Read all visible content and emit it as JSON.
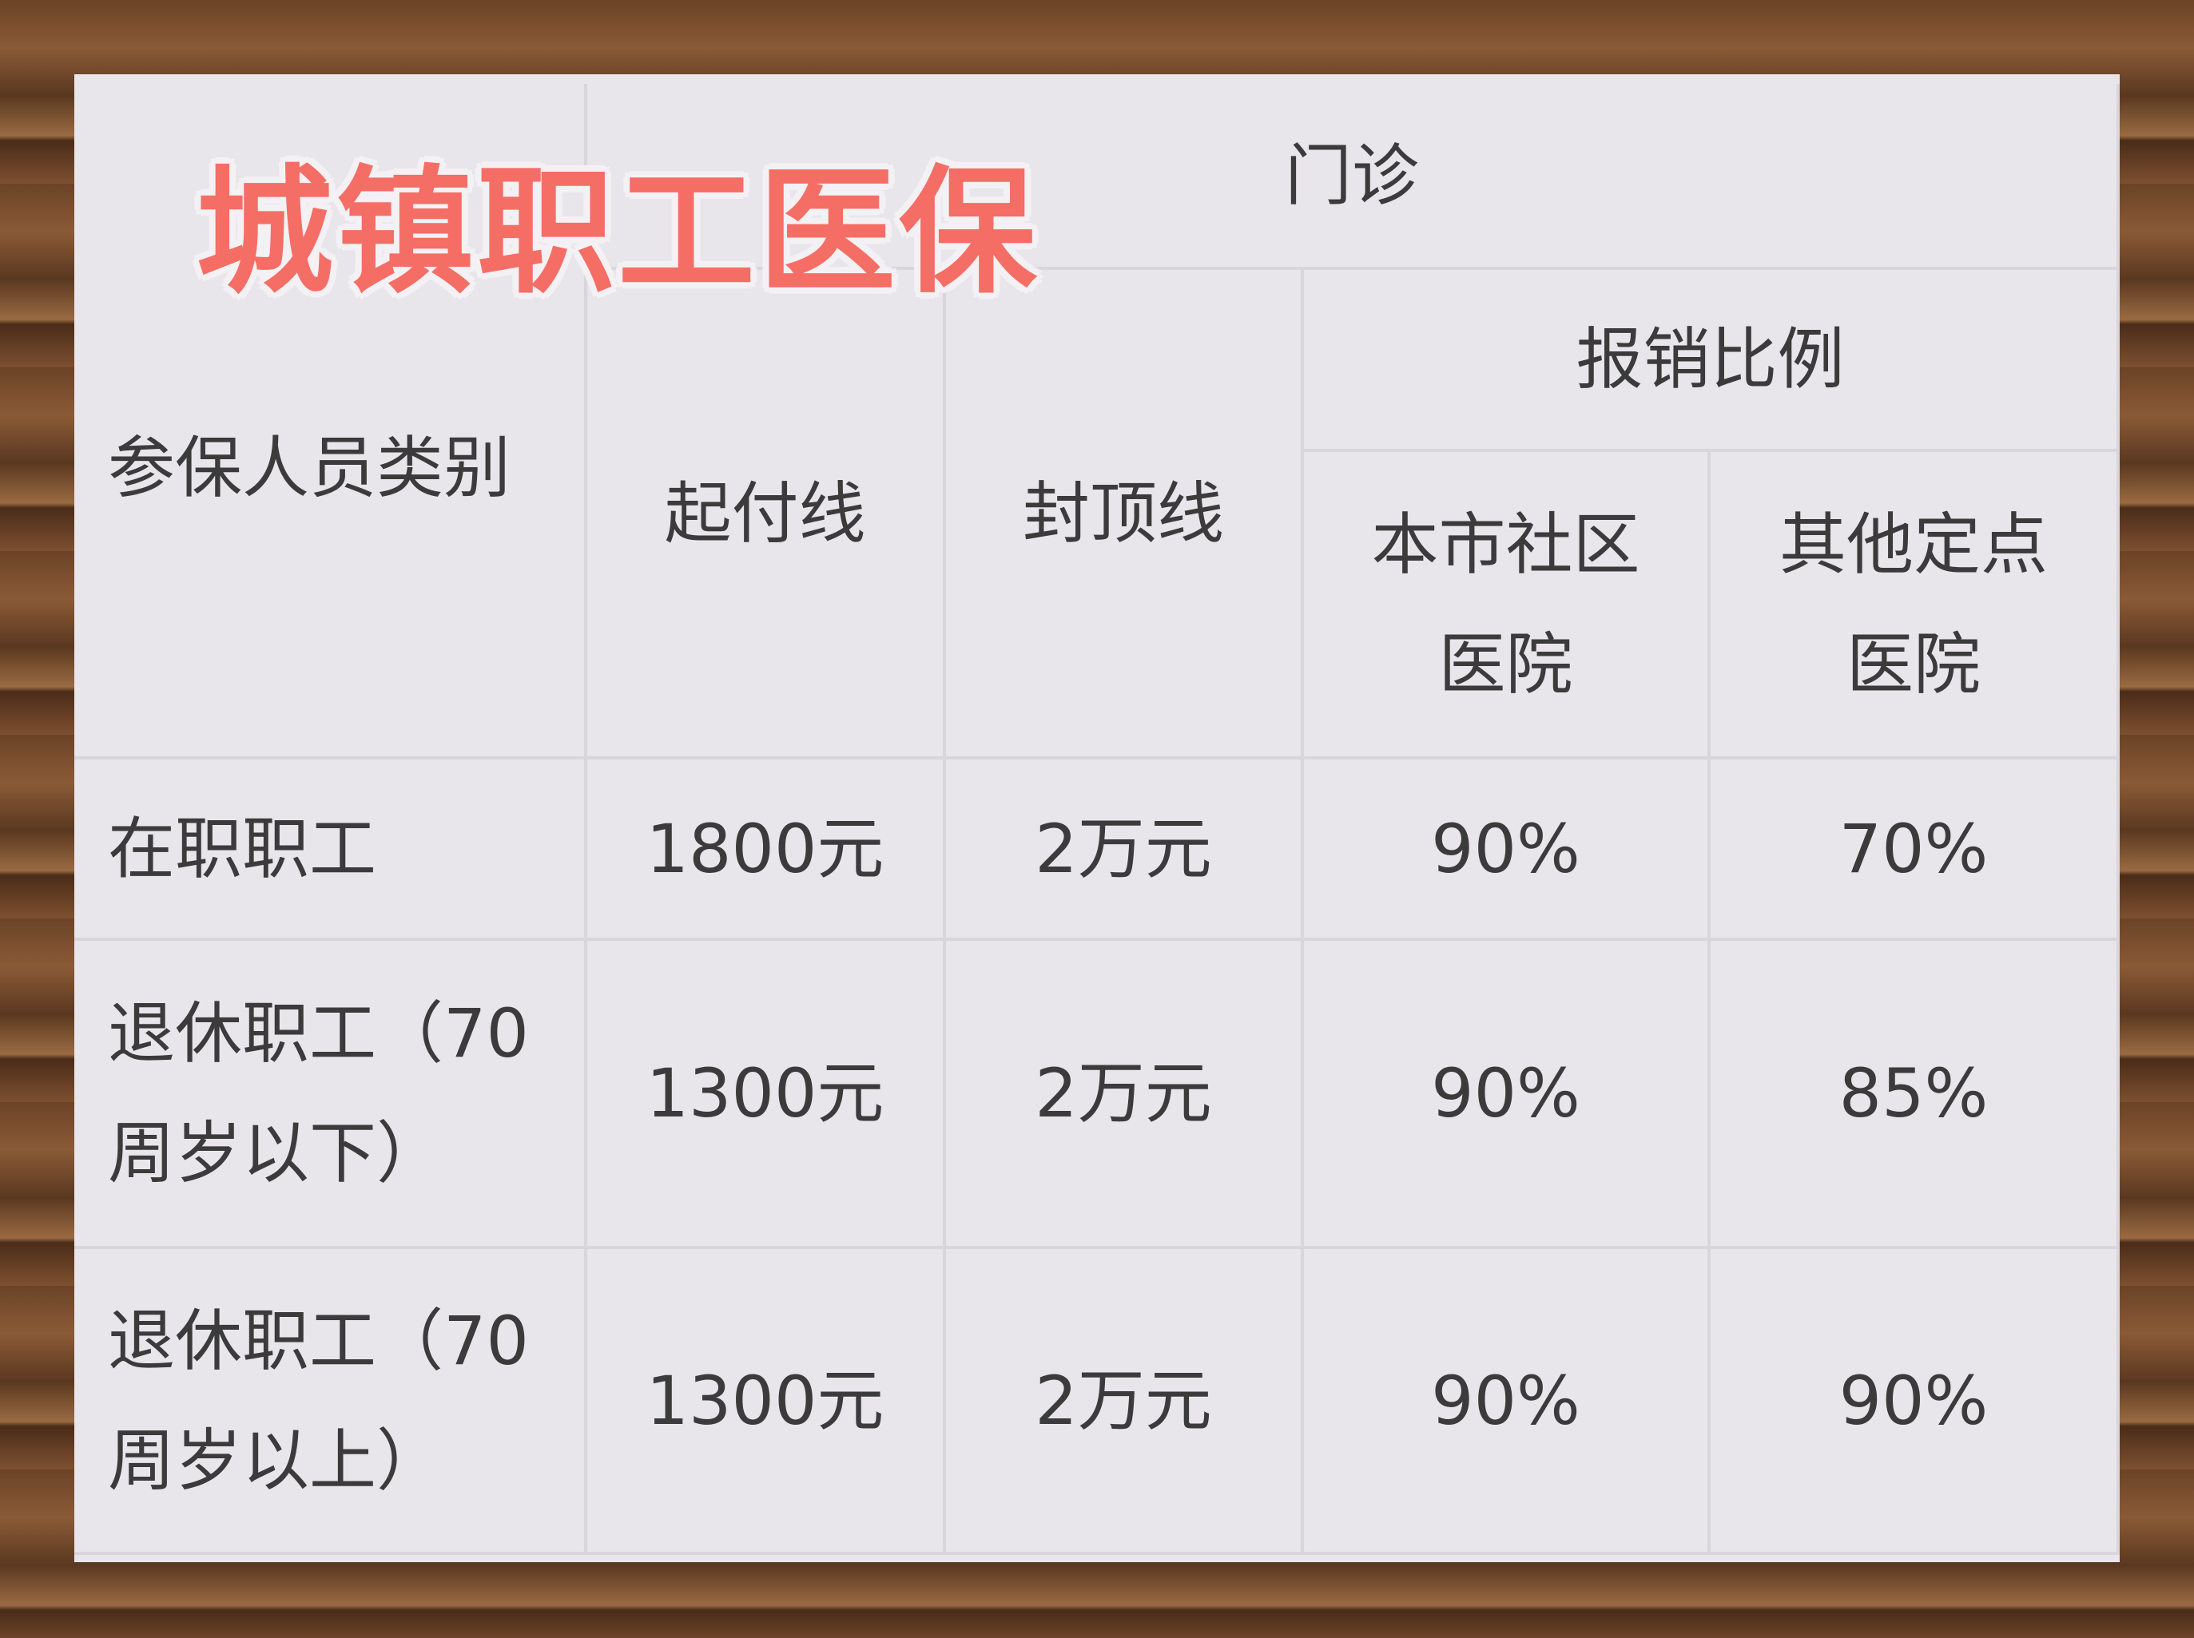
{
  "title": "城镇职工医保",
  "header": {
    "category": "参保人员类别",
    "outpatient": "门诊",
    "deductible": "起付线",
    "cap": "封顶线",
    "reimbursement": "报销比例",
    "local_community": "本市社区医院",
    "other_designated": "其他定点医院"
  },
  "rows": [
    {
      "category": "在职职工",
      "deductible": "1800元",
      "cap": "2万元",
      "local": "90%",
      "other": "70%"
    },
    {
      "category": "退休职工（70周岁以下）",
      "deductible": "1300元",
      "cap": "2万元",
      "local": "90%",
      "other": "85%"
    },
    {
      "category": "退休职工（70周岁以上）",
      "deductible": "1300元",
      "cap": "2万元",
      "local": "90%",
      "other": "90%"
    }
  ],
  "colors": {
    "title": "#f46e66",
    "panel": "#e9e6eb",
    "text": "#3b3b3b"
  }
}
